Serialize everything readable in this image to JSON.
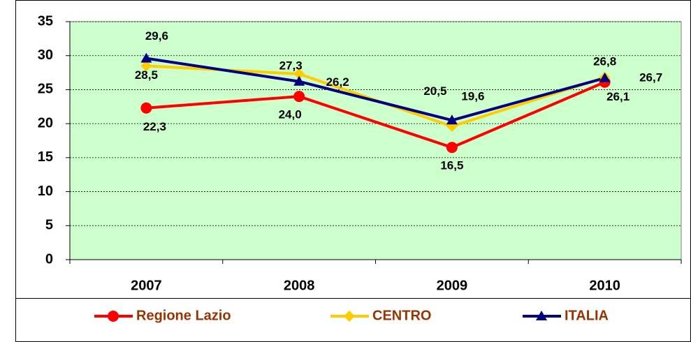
{
  "chart_data": {
    "type": "line",
    "categories": [
      "2007",
      "2008",
      "2009",
      "2010"
    ],
    "series": [
      {
        "name": "Regione Lazio",
        "color": "#ff0000",
        "marker": "circle",
        "values": [
          22.3,
          24.0,
          16.5,
          26.1
        ],
        "value_labels": [
          "22,3",
          "24,0",
          "16,5",
          "26,1"
        ]
      },
      {
        "name": "CENTRO",
        "color": "#ffcc00",
        "marker": "diamond",
        "values": [
          28.5,
          27.3,
          19.6,
          26.8
        ],
        "value_labels": [
          "28,5",
          "27,3",
          "19,6",
          "26,8"
        ]
      },
      {
        "name": "ITALIA",
        "color": "#000080",
        "marker": "triangle",
        "values": [
          29.6,
          26.2,
          20.5,
          26.7
        ],
        "value_labels": [
          "29,6",
          "26,2",
          "20,5",
          "26,7"
        ]
      }
    ],
    "ylim": [
      0,
      35
    ],
    "yticks": [
      0,
      5,
      10,
      15,
      20,
      25,
      30,
      35
    ],
    "grid": true,
    "plot_background": "#ccffcc",
    "legend_position": "bottom",
    "legend_text_color": "#993300"
  }
}
